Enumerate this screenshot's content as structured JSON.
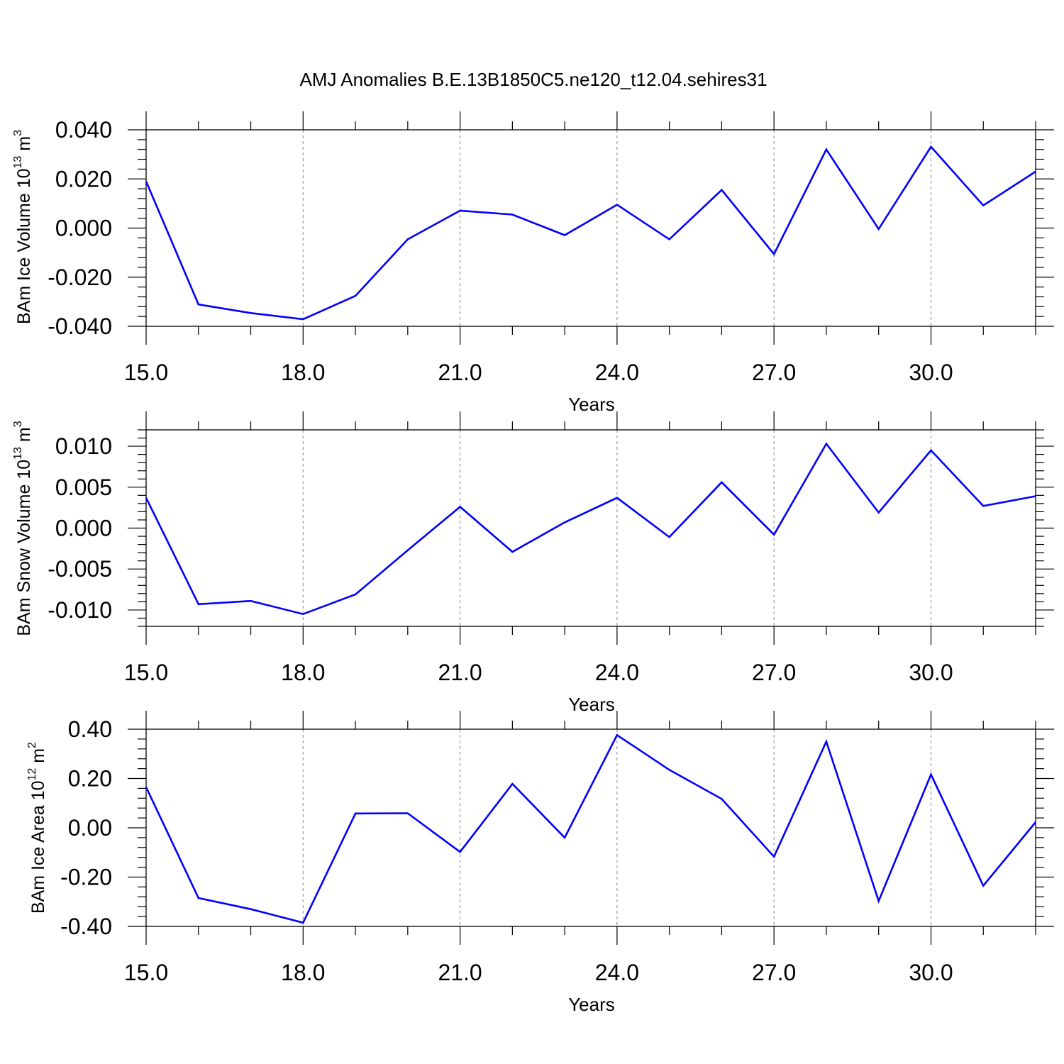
{
  "figure": {
    "title": "AMJ Anomalies B.E.13B1850C5.ne120_t12.04.sehires31"
  },
  "chart_data": [
    {
      "type": "line",
      "xlabel": "Years",
      "ylabel_main": "BAm Ice Volume 10",
      "ylabel_exp": "13",
      "ylabel_unit": " m",
      "ylabel_unit_exp": "3",
      "xlim": [
        15,
        32
      ],
      "ylim": [
        -0.04,
        0.04
      ],
      "x_ticks": [
        "15.0",
        "18.0",
        "21.0",
        "24.0",
        "27.0",
        "30.0"
      ],
      "y_ticks": [
        "0.040",
        "0.020",
        "0.000",
        "-0.020",
        "-0.040"
      ],
      "y_tick_values": [
        0.04,
        0.02,
        0.0,
        -0.02,
        -0.04
      ],
      "grid": "vertical dashed at major x ticks",
      "series_color": "#0000ff",
      "x": [
        15,
        16,
        17,
        18,
        19,
        20,
        21,
        22,
        23,
        24,
        25,
        26,
        27,
        28,
        29,
        30,
        31,
        32
      ],
      "values": [
        0.019,
        -0.0311,
        -0.0346,
        -0.0371,
        -0.0276,
        -0.0046,
        0.0071,
        0.0055,
        -0.0029,
        0.0095,
        -0.0046,
        0.0155,
        -0.0106,
        0.032,
        -0.0004,
        0.0331,
        0.0092,
        0.023
      ]
    },
    {
      "type": "line",
      "xlabel": "Years",
      "ylabel_main": "BAm Snow Volume 10",
      "ylabel_exp": "13",
      "ylabel_unit": " m",
      "ylabel_unit_exp": "3",
      "xlim": [
        15,
        32
      ],
      "ylim": [
        -0.012,
        0.012
      ],
      "x_ticks": [
        "15.0",
        "18.0",
        "21.0",
        "24.0",
        "27.0",
        "30.0"
      ],
      "y_ticks": [
        "0.010",
        "0.005",
        "0.000",
        "-0.005",
        "-0.010"
      ],
      "y_tick_values": [
        0.01,
        0.005,
        0.0,
        -0.005,
        -0.01
      ],
      "grid": "vertical dashed at major x ticks",
      "series_color": "#0000ff",
      "x": [
        15,
        16,
        17,
        18,
        19,
        20,
        21,
        22,
        23,
        24,
        25,
        26,
        27,
        28,
        29,
        30,
        31,
        32
      ],
      "values": [
        0.0037,
        -0.0093,
        -0.0089,
        -0.0105,
        -0.0081,
        -0.0027,
        0.0026,
        -0.0029,
        0.0007,
        0.0037,
        -0.0011,
        0.0056,
        -0.0008,
        0.0103,
        0.0019,
        0.0095,
        0.0027,
        0.0039
      ]
    },
    {
      "type": "line",
      "xlabel": "Years",
      "ylabel_main": "BAm Ice Area 10",
      "ylabel_exp": "12",
      "ylabel_unit": " m",
      "ylabel_unit_exp": "2",
      "xlim": [
        15,
        32
      ],
      "ylim": [
        -0.4,
        0.4
      ],
      "x_ticks": [
        "15.0",
        "18.0",
        "21.0",
        "24.0",
        "27.0",
        "30.0"
      ],
      "y_ticks": [
        "0.40",
        "0.20",
        "0.00",
        "-0.20",
        "-0.40"
      ],
      "y_tick_values": [
        0.4,
        0.2,
        0.0,
        -0.2,
        -0.4
      ],
      "grid": "vertical dashed at major x ticks",
      "series_color": "#0000ff",
      "x": [
        15,
        16,
        17,
        18,
        19,
        20,
        21,
        22,
        23,
        24,
        25,
        26,
        27,
        28,
        29,
        30,
        31,
        32
      ],
      "values": [
        0.165,
        -0.285,
        -0.33,
        -0.385,
        0.058,
        0.059,
        -0.098,
        0.178,
        -0.04,
        0.376,
        0.235,
        0.117,
        -0.117,
        0.35,
        -0.297,
        0.216,
        -0.235,
        0.023
      ]
    }
  ]
}
